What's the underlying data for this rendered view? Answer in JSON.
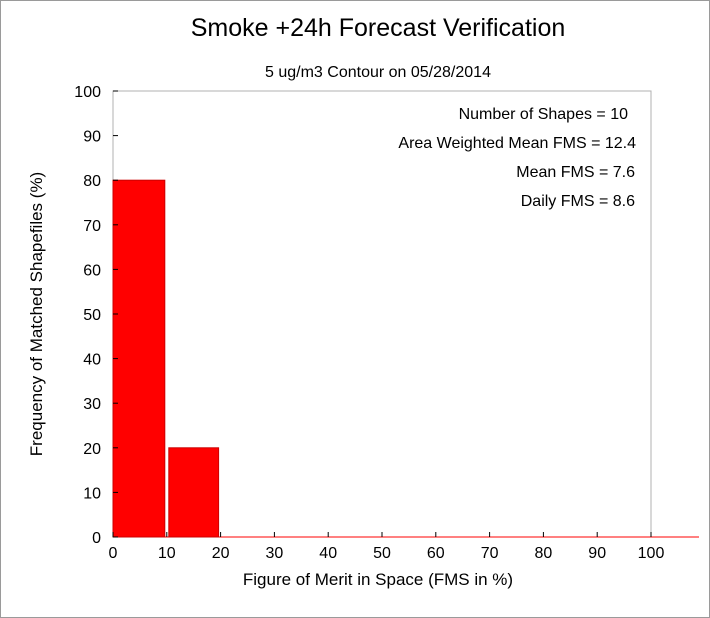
{
  "chart_data": {
    "type": "bar",
    "title": "Smoke +24h Forecast Verification",
    "subtitle": "5 ug/m3 Contour on 05/28/2014",
    "xlabel": "Figure of Merit in Space (FMS in %)",
    "ylabel": "Frequency of Matched Shapefiles (%)",
    "xlim": [
      0,
      100
    ],
    "ylim": [
      0,
      100
    ],
    "xticks": [
      0,
      10,
      20,
      30,
      40,
      50,
      60,
      70,
      80,
      90,
      100
    ],
    "yticks": [
      0,
      10,
      20,
      30,
      40,
      50,
      60,
      70,
      80,
      90,
      100
    ],
    "bins": [
      {
        "from": 0,
        "to": 10,
        "value": 80
      },
      {
        "from": 10,
        "to": 20,
        "value": 20
      },
      {
        "from": 20,
        "to": 30,
        "value": 0
      },
      {
        "from": 30,
        "to": 40,
        "value": 0
      },
      {
        "from": 40,
        "to": 50,
        "value": 0
      },
      {
        "from": 50,
        "to": 60,
        "value": 0
      },
      {
        "from": 60,
        "to": 70,
        "value": 0
      },
      {
        "from": 70,
        "to": 80,
        "value": 0
      },
      {
        "from": 80,
        "to": 90,
        "value": 0
      },
      {
        "from": 90,
        "to": 100,
        "value": 0
      }
    ],
    "bar_color": "#ff0000",
    "grid": false,
    "stats": [
      "Number of Shapes = 10",
      "Area Weighted Mean FMS = 12.4",
      "Mean FMS = 7.6",
      "Daily FMS = 8.6"
    ],
    "stats_placement": "top-right"
  }
}
